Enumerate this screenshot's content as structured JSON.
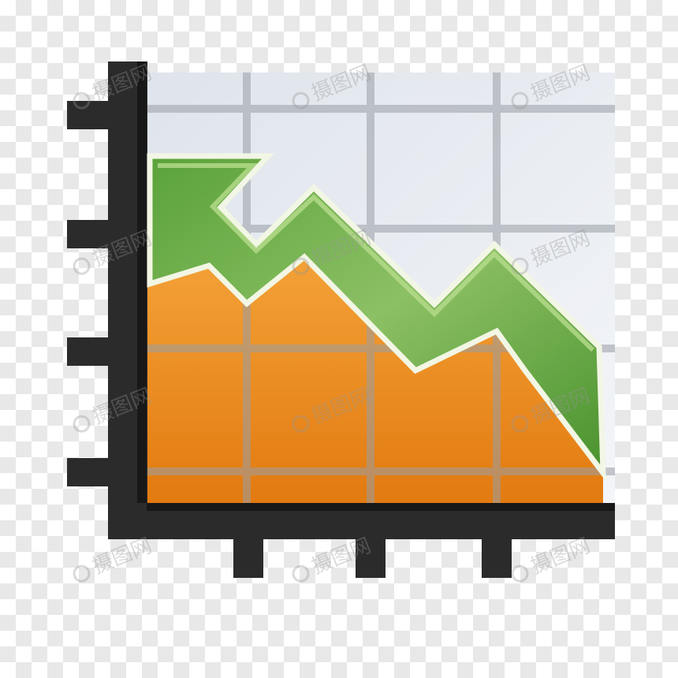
{
  "graphic": {
    "name": "area chart with green arrow icon",
    "icon_names": [
      "area-chart-icon",
      "trend-arrow-icon"
    ],
    "colors": {
      "axis": "#2b2b2b",
      "plot_background": "#e6eaf0",
      "gridline": "#9a9ea6",
      "area_top": "#f4a43a",
      "area_bottom": "#e27a10",
      "arrow_dark": "#4f9a32",
      "arrow_light": "#9ccc70",
      "arrow_outline": "#f2f6e4"
    }
  },
  "watermark": {
    "text": "摄图网",
    "count": 12
  }
}
